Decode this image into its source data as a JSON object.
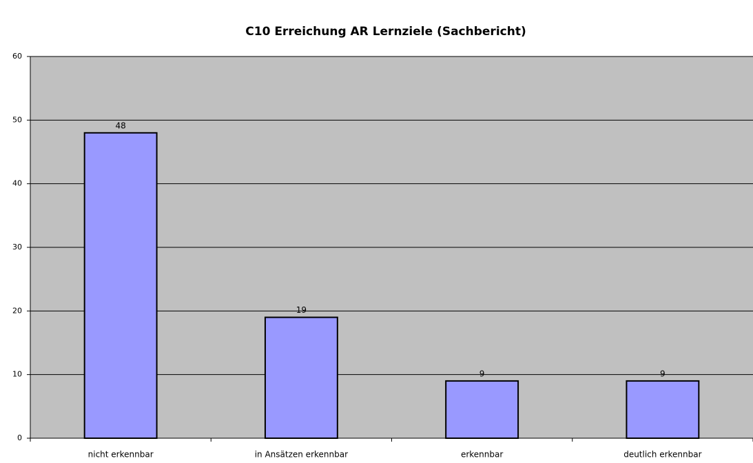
{
  "chart_data": {
    "type": "bar",
    "title": "C10 Erreichung AR Lernziele (Sachbericht)",
    "categories": [
      "nicht erkennbar",
      "in Ansätzen erkennbar",
      "erkennbar",
      "deutlich erkennbar"
    ],
    "values": [
      48,
      19,
      9,
      9
    ],
    "color": "#9999ff",
    "background": "#c0c0c0",
    "ylim": [
      0,
      60
    ],
    "yticks": [
      0,
      10,
      20,
      30,
      40,
      50,
      60
    ],
    "grid": true,
    "data_labels": true
  }
}
